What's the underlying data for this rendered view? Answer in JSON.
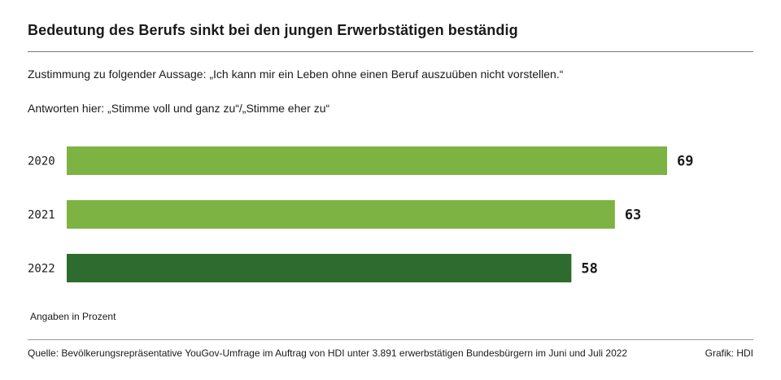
{
  "header": {
    "title": "Bedeutung des Berufs sinkt bei den jungen Erwerbstätigen beständig",
    "subtitle1": "Zustimmung zu folgender Aussage: „Ich kann mir ein Leben ohne einen Beruf auszuüben nicht vorstellen.“",
    "subtitle2": "Antworten hier: „Stimme voll und ganz zu“/„Stimme eher zu“"
  },
  "footer": {
    "note": "Angaben in Prozent",
    "source": "Quelle: Bevölkerungsrepräsentative YouGov-Umfrage im Auftrag von HDI unter 3.891 erwerbstätigen Bundesbürgern im Juni und Juli 2022",
    "credit": "Grafik: HDI"
  },
  "colors": {
    "bar_light": "#7cb342",
    "bar_dark": "#2e6b2e"
  },
  "chart_data": {
    "type": "bar",
    "orientation": "horizontal",
    "categories": [
      "2020",
      "2021",
      "2022"
    ],
    "values": [
      69,
      63,
      58
    ],
    "bar_colors": [
      "#7cb342",
      "#7cb342",
      "#2e6b2e"
    ],
    "unit": "Prozent",
    "xlim": [
      0,
      100
    ]
  }
}
